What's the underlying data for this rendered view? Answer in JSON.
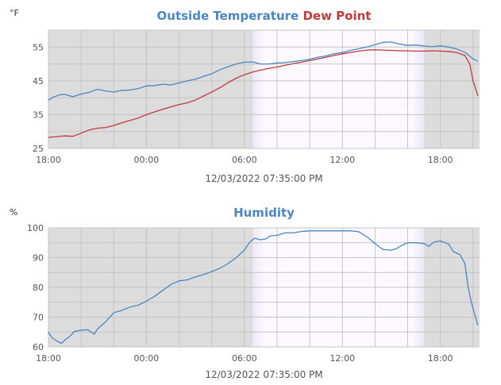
{
  "charts": [
    {
      "title_parts": [
        {
          "text": "Outside Temperature",
          "color": "#4a86c0"
        },
        {
          "text": "Dew Point",
          "color": "#c03a3a"
        }
      ],
      "timestamp": "12/03/2022 07:35:00 PM"
    },
    {
      "title_parts": [
        {
          "text": "Humidity",
          "color": "#4a86c0"
        }
      ],
      "timestamp": "12/03/2022 07:35:00 PM"
    }
  ],
  "chart_data": [
    {
      "type": "line",
      "unit": "°F",
      "x_domain_hours": [
        18,
        44.4
      ],
      "x_ticks": [
        {
          "hour": 18,
          "label": "18:00"
        },
        {
          "hour": 24,
          "label": "00:00"
        },
        {
          "hour": 30,
          "label": "06:00"
        },
        {
          "hour": 36,
          "label": "12:00"
        },
        {
          "hour": 42,
          "label": "18:00"
        }
      ],
      "ylim": [
        25,
        60
      ],
      "y_ticks": [
        25,
        35,
        45,
        55
      ],
      "grid": true,
      "daylight_band_hours": [
        30.5,
        41.0
      ],
      "series": [
        {
          "name": "Outside Temperature",
          "color": "#4a86c0",
          "points": [
            [
              18,
              39.3
            ],
            [
              18.3,
              40.2
            ],
            [
              18.7,
              40.9
            ],
            [
              19,
              41
            ],
            [
              19.5,
              40.3
            ],
            [
              20,
              41.1
            ],
            [
              20.5,
              41.6
            ],
            [
              21,
              42.5
            ],
            [
              21.5,
              42
            ],
            [
              22,
              41.7
            ],
            [
              22.5,
              42.2
            ],
            [
              23,
              42.3
            ],
            [
              23.5,
              42.7
            ],
            [
              24,
              43.5
            ],
            [
              24.5,
              43.6
            ],
            [
              25,
              44
            ],
            [
              25.5,
              43.8
            ],
            [
              26,
              44.4
            ],
            [
              26.5,
              45
            ],
            [
              27,
              45.5
            ],
            [
              27.5,
              46.3
            ],
            [
              28,
              47.1
            ],
            [
              28.5,
              48.3
            ],
            [
              29,
              49.2
            ],
            [
              29.5,
              50
            ],
            [
              30,
              50.5
            ],
            [
              30.5,
              50.6
            ],
            [
              31,
              50
            ],
            [
              31.5,
              50
            ],
            [
              32,
              50.3
            ],
            [
              32.5,
              50.4
            ],
            [
              33,
              50.7
            ],
            [
              33.5,
              51
            ],
            [
              34,
              51.4
            ],
            [
              34.5,
              52
            ],
            [
              35,
              52.4
            ],
            [
              35.5,
              53
            ],
            [
              36,
              53.4
            ],
            [
              36.5,
              54
            ],
            [
              37,
              54.5
            ],
            [
              37.5,
              55
            ],
            [
              38,
              55.7
            ],
            [
              38.5,
              56.4
            ],
            [
              39,
              56.5
            ],
            [
              39.5,
              55.9
            ],
            [
              40,
              55.5
            ],
            [
              40.5,
              55.6
            ],
            [
              41,
              55.3
            ],
            [
              41.5,
              55.1
            ],
            [
              42,
              55.4
            ],
            [
              42.5,
              55
            ],
            [
              43,
              54.4
            ],
            [
              43.5,
              53.5
            ],
            [
              44,
              51.5
            ],
            [
              44.3,
              50.8
            ]
          ]
        },
        {
          "name": "Dew Point",
          "color": "#c03a3a",
          "points": [
            [
              18,
              28.3
            ],
            [
              18.5,
              28.5
            ],
            [
              19,
              28.7
            ],
            [
              19.5,
              28.6
            ],
            [
              20,
              29.5
            ],
            [
              20.5,
              30.5
            ],
            [
              21,
              31
            ],
            [
              21.5,
              31.2
            ],
            [
              22,
              31.8
            ],
            [
              22.5,
              32.6
            ],
            [
              23,
              33.3
            ],
            [
              23.5,
              34
            ],
            [
              24,
              35
            ],
            [
              24.5,
              35.8
            ],
            [
              25,
              36.6
            ],
            [
              25.5,
              37.3
            ],
            [
              26,
              38
            ],
            [
              26.5,
              38.5
            ],
            [
              27,
              39.3
            ],
            [
              27.5,
              40.5
            ],
            [
              28,
              41.7
            ],
            [
              28.5,
              43
            ],
            [
              29,
              44.5
            ],
            [
              29.5,
              45.8
            ],
            [
              30,
              46.8
            ],
            [
              30.5,
              47.6
            ],
            [
              31,
              48.2
            ],
            [
              31.5,
              48.7
            ],
            [
              32,
              49.1
            ],
            [
              32.5,
              49.6
            ],
            [
              33,
              50.1
            ],
            [
              33.5,
              50.5
            ],
            [
              34,
              51
            ],
            [
              34.5,
              51.5
            ],
            [
              35,
              52
            ],
            [
              35.5,
              52.5
            ],
            [
              36,
              53
            ],
            [
              36.5,
              53.4
            ],
            [
              37,
              53.8
            ],
            [
              37.5,
              54.1
            ],
            [
              38,
              54.2
            ],
            [
              38.5,
              54.1
            ],
            [
              39,
              54
            ],
            [
              39.5,
              53.9
            ],
            [
              40,
              53.9
            ],
            [
              40.5,
              53.8
            ],
            [
              41,
              53.8
            ],
            [
              41.5,
              53.9
            ],
            [
              42,
              53.8
            ],
            [
              42.5,
              53.7
            ],
            [
              43,
              53.4
            ],
            [
              43.5,
              52.5
            ],
            [
              43.8,
              50
            ],
            [
              44,
              45
            ],
            [
              44.3,
              40.6
            ]
          ]
        }
      ]
    },
    {
      "type": "line",
      "unit": "%",
      "x_domain_hours": [
        18,
        44.4
      ],
      "x_ticks": [
        {
          "hour": 18,
          "label": "18:00"
        },
        {
          "hour": 24,
          "label": "00:00"
        },
        {
          "hour": 30,
          "label": "06:00"
        },
        {
          "hour": 36,
          "label": "12:00"
        },
        {
          "hour": 42,
          "label": "18:00"
        }
      ],
      "ylim": [
        60,
        100
      ],
      "y_ticks": [
        60,
        70,
        80,
        90,
        100
      ],
      "grid": true,
      "daylight_band_hours": [
        30.5,
        41.0
      ],
      "series": [
        {
          "name": "Humidity",
          "color": "#4a86c0",
          "points": [
            [
              18,
              65
            ],
            [
              18.2,
              63.2
            ],
            [
              18.5,
              62
            ],
            [
              18.8,
              61.2
            ],
            [
              19,
              62.3
            ],
            [
              19.3,
              63.5
            ],
            [
              19.6,
              65.2
            ],
            [
              20,
              65.6
            ],
            [
              20.4,
              65.8
            ],
            [
              20.8,
              64.3
            ],
            [
              21,
              66
            ],
            [
              21.5,
              68.4
            ],
            [
              22,
              71.5
            ],
            [
              22.5,
              72.3
            ],
            [
              23,
              73.4
            ],
            [
              23.5,
              74
            ],
            [
              24,
              75.4
            ],
            [
              24.5,
              77
            ],
            [
              25,
              79
            ],
            [
              25.5,
              81
            ],
            [
              26,
              82.2
            ],
            [
              26.5,
              82.5
            ],
            [
              27,
              83.5
            ],
            [
              27.5,
              84.3
            ],
            [
              28,
              85.3
            ],
            [
              28.5,
              86.4
            ],
            [
              29,
              88
            ],
            [
              29.5,
              90
            ],
            [
              30,
              92.5
            ],
            [
              30.3,
              95
            ],
            [
              30.6,
              96.5
            ],
            [
              31,
              96
            ],
            [
              31.3,
              96.3
            ],
            [
              31.6,
              97.3
            ],
            [
              32,
              97.5
            ],
            [
              32.5,
              98.3
            ],
            [
              33,
              98.3
            ],
            [
              33.5,
              98.8
            ],
            [
              34,
              99
            ],
            [
              35,
              99
            ],
            [
              36,
              99
            ],
            [
              36.5,
              99
            ],
            [
              37,
              98.7
            ],
            [
              37.5,
              97
            ],
            [
              38,
              94.7
            ],
            [
              38.5,
              92.7
            ],
            [
              39,
              92.5
            ],
            [
              39.3,
              93
            ],
            [
              39.6,
              94
            ],
            [
              40,
              95
            ],
            [
              40.5,
              95
            ],
            [
              41,
              94.7
            ],
            [
              41.3,
              93.8
            ],
            [
              41.6,
              95.2
            ],
            [
              42,
              95.6
            ],
            [
              42.5,
              94.6
            ],
            [
              42.8,
              92
            ],
            [
              43.2,
              91
            ],
            [
              43.5,
              88
            ],
            [
              43.7,
              80
            ],
            [
              43.9,
              75
            ],
            [
              44.1,
              71
            ],
            [
              44.3,
              67.3
            ]
          ]
        }
      ]
    }
  ]
}
